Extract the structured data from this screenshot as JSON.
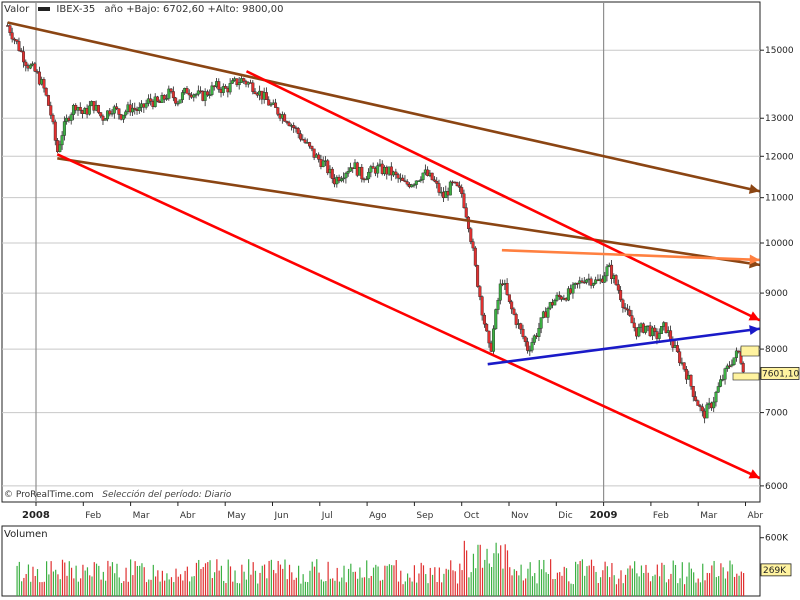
{
  "header": {
    "label": "Valor",
    "symbol": "IBEX-35",
    "stats": "año +Bajo: 6702,60 +Alto: 9800,00"
  },
  "credit": {
    "brand": "© ProRealTime.com",
    "period": "Selección del período: Diario"
  },
  "volume_panel": {
    "title": "Volumen"
  },
  "chart_data": {
    "type": "candlestick",
    "scale": "log",
    "ylim": [
      5800,
      16600
    ],
    "y_ticks": [
      6000,
      7000,
      8000,
      9000,
      10000,
      11000,
      12000,
      13000,
      15000
    ],
    "y_tick_labels": [
      "6000",
      "7000",
      "8000",
      "9000",
      "10000",
      "11000",
      "12000",
      "13000",
      "15000"
    ],
    "last_price": 7601.1,
    "last_price_label": "7601,10",
    "x_labels": [
      {
        "label": "2008",
        "month": 0,
        "year": true
      },
      {
        "label": "Feb",
        "month": 1
      },
      {
        "label": "Mar",
        "month": 2
      },
      {
        "label": "Abr",
        "month": 3
      },
      {
        "label": "May",
        "month": 4
      },
      {
        "label": "Jun",
        "month": 5
      },
      {
        "label": "Jul",
        "month": 6
      },
      {
        "label": "Ago",
        "month": 7
      },
      {
        "label": "Sep",
        "month": 8
      },
      {
        "label": "Oct",
        "month": 9
      },
      {
        "label": "Nov",
        "month": 10
      },
      {
        "label": "Dic",
        "month": 11
      },
      {
        "label": "2009",
        "month": 12,
        "year": true
      },
      {
        "label": "Feb",
        "month": 13
      },
      {
        "label": "Mar",
        "month": 14
      },
      {
        "label": "Abr",
        "month": 15
      }
    ],
    "price_path": [
      [
        -0.6,
        15800
      ],
      [
        -0.4,
        15200
      ],
      [
        -0.2,
        14600
      ],
      [
        0.0,
        14300
      ],
      [
        0.15,
        13900
      ],
      [
        0.3,
        13200
      ],
      [
        0.45,
        12100
      ],
      [
        0.55,
        12600
      ],
      [
        0.7,
        13100
      ],
      [
        0.85,
        13400
      ],
      [
        1.0,
        13100
      ],
      [
        1.2,
        13400
      ],
      [
        1.4,
        13000
      ],
      [
        1.6,
        13300
      ],
      [
        1.8,
        13100
      ],
      [
        2.0,
        13300
      ],
      [
        2.2,
        13200
      ],
      [
        2.4,
        13500
      ],
      [
        2.6,
        13400
      ],
      [
        2.8,
        13700
      ],
      [
        3.0,
        13500
      ],
      [
        3.2,
        13800
      ],
      [
        3.5,
        13600
      ],
      [
        3.8,
        13900
      ],
      [
        4.0,
        13800
      ],
      [
        4.2,
        14000
      ],
      [
        4.35,
        14100
      ],
      [
        4.6,
        13900
      ],
      [
        4.8,
        13600
      ],
      [
        5.0,
        13300
      ],
      [
        5.3,
        13000
      ],
      [
        5.6,
        12500
      ],
      [
        5.9,
        12000
      ],
      [
        6.1,
        11800
      ],
      [
        6.3,
        11400
      ],
      [
        6.5,
        11600
      ],
      [
        6.7,
        11800
      ],
      [
        6.9,
        11500
      ],
      [
        7.2,
        11700
      ],
      [
        7.5,
        11600
      ],
      [
        7.8,
        11300
      ],
      [
        8.0,
        11400
      ],
      [
        8.2,
        11600
      ],
      [
        8.4,
        11400
      ],
      [
        8.6,
        11000
      ],
      [
        8.8,
        11300
      ],
      [
        9.0,
        11100
      ],
      [
        9.15,
        10400
      ],
      [
        9.3,
        9400
      ],
      [
        9.45,
        8600
      ],
      [
        9.6,
        7900
      ],
      [
        9.7,
        8500
      ],
      [
        9.85,
        9300
      ],
      [
        10.0,
        8800
      ],
      [
        10.2,
        8400
      ],
      [
        10.4,
        8000
      ],
      [
        10.6,
        8300
      ],
      [
        10.8,
        8700
      ],
      [
        11.0,
        8900
      ],
      [
        11.3,
        9000
      ],
      [
        11.6,
        9300
      ],
      [
        11.9,
        9200
      ],
      [
        12.1,
        9500
      ],
      [
        12.3,
        9100
      ],
      [
        12.5,
        8600
      ],
      [
        12.7,
        8300
      ],
      [
        12.9,
        8400
      ],
      [
        13.1,
        8200
      ],
      [
        13.3,
        8400
      ],
      [
        13.5,
        8000
      ],
      [
        13.7,
        7700
      ],
      [
        13.9,
        7300
      ],
      [
        14.1,
        6950
      ],
      [
        14.3,
        7150
      ],
      [
        14.5,
        7500
      ],
      [
        14.7,
        7800
      ],
      [
        14.85,
        7950
      ],
      [
        15.0,
        7600
      ]
    ],
    "trendlines": [
      {
        "color": "#8B4513",
        "from": [
          -0.6,
          15900
        ],
        "to": [
          15.3,
          11150
        ]
      },
      {
        "color": "#8B4513",
        "from": [
          0.45,
          11950
        ],
        "to": [
          15.3,
          9550
        ]
      },
      {
        "color": "#FF0000",
        "from": [
          4.45,
          14350
        ],
        "to": [
          15.3,
          8500
        ]
      },
      {
        "color": "#FF0000",
        "from": [
          0.45,
          12050
        ],
        "to": [
          15.3,
          6100
        ]
      },
      {
        "color": "#1A1AC8",
        "from": [
          9.55,
          7750
        ],
        "to": [
          15.3,
          8350
        ]
      },
      {
        "color": "#FF8040",
        "from": [
          9.85,
          9850
        ],
        "to": [
          15.3,
          9650
        ]
      }
    ],
    "volume": {
      "ylim": [
        0,
        700
      ],
      "y_ticks": [
        600
      ],
      "y_tick_labels": [
        "600K"
      ],
      "last_label": "269K",
      "last_value": 269,
      "up_color": "#3CB043",
      "down_color": "#E03030"
    },
    "colors": {
      "up_candle": "#3CB043",
      "down_candle": "#E03030",
      "grid": "#C8C8C8",
      "year_line": "#909090",
      "frame": "#222222",
      "last_price_box": "#FFF3A0"
    }
  }
}
